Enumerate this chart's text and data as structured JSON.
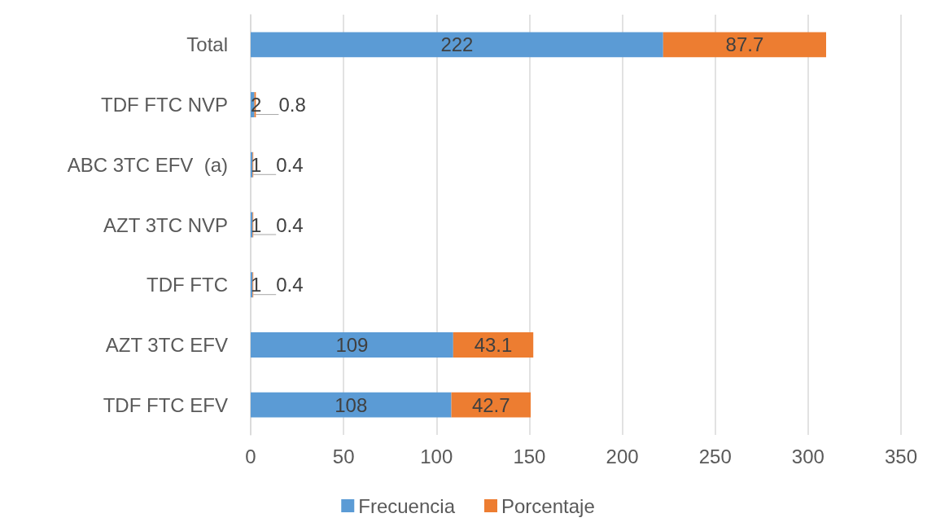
{
  "chart_data": {
    "type": "bar",
    "orientation": "horizontal",
    "stacked": true,
    "categories": [
      "Total",
      "TDF FTC NVP",
      "ABC 3TC EFV  (a)",
      "AZT 3TC NVP",
      "TDF FTC",
      "AZT 3TC EFV",
      "TDF FTC EFV"
    ],
    "series": [
      {
        "name": "Frecuencia",
        "color": "#5b9bd5",
        "values": [
          222,
          2,
          1,
          1,
          1,
          109,
          108
        ]
      },
      {
        "name": "Porcentaje",
        "color": "#ed7d31",
        "values": [
          87.7,
          0.8,
          0.4,
          0.4,
          0.4,
          43.1,
          42.7
        ]
      }
    ],
    "xlim": [
      0,
      350
    ],
    "xticks": [
      0,
      50,
      100,
      150,
      200,
      250,
      300,
      350
    ],
    "grid": "x",
    "legend": "bottom",
    "data_labels": true
  }
}
